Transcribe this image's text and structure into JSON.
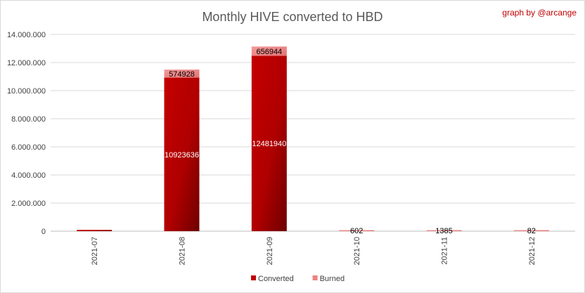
{
  "chart_data": {
    "type": "bar",
    "stacked": true,
    "title": "Monthly HIVE converted to HBD",
    "credit": "graph by @arcange",
    "categories": [
      "2021-07",
      "2021-08",
      "2021-09",
      "2021-10",
      "2021-11",
      "2021-12"
    ],
    "series": [
      {
        "name": "Converted",
        "color": "#c00000",
        "values": [
          90000,
          10923636,
          12481940,
          0,
          0,
          0
        ],
        "labels": [
          "",
          "10923636",
          "12481940",
          "",
          "",
          ""
        ]
      },
      {
        "name": "Burned",
        "color": "#f08080",
        "values": [
          0,
          574928,
          656944,
          602,
          1385,
          82
        ],
        "labels": [
          "",
          "574928",
          "656944",
          "602",
          "1385",
          "82"
        ]
      }
    ],
    "ylim": [
      0,
      14000000
    ],
    "yticks": [
      0,
      2000000,
      4000000,
      6000000,
      8000000,
      10000000,
      12000000,
      14000000
    ],
    "ytick_labels": [
      "0",
      "2.000.000",
      "4.000.000",
      "6.000.000",
      "8.000.000",
      "10.000.000",
      "12.000.000",
      "14.000.000"
    ],
    "xlabel": "",
    "ylabel": "",
    "grid": true,
    "legend_position": "bottom"
  }
}
